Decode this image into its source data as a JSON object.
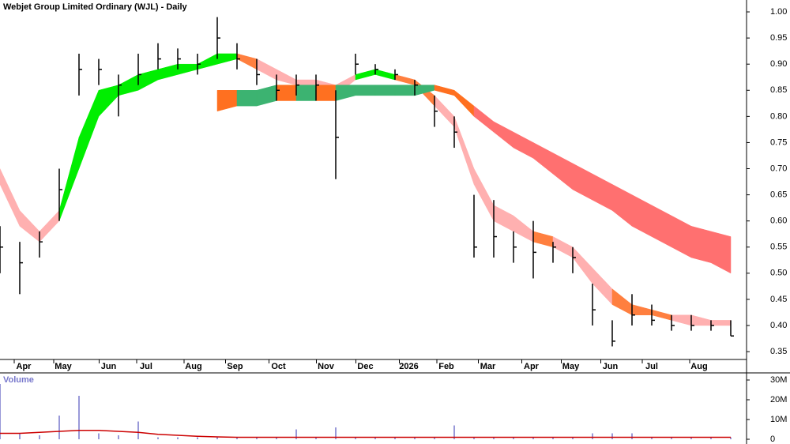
{
  "chart_data": {
    "type": "price-bars",
    "title": "Webjet Group Limited Ordinary (WJL) - Daily",
    "volume_title": "Volume",
    "x": [
      0,
      10,
      20,
      30,
      40,
      50,
      60,
      70,
      80,
      90,
      100,
      110,
      120,
      130,
      140,
      150,
      160,
      170,
      180,
      190,
      200,
      210,
      220,
      230,
      240,
      250,
      260,
      270,
      280,
      290,
      300,
      310,
      320,
      330,
      340,
      350,
      360,
      370
    ],
    "close": [
      0.55,
      0.52,
      0.56,
      0.66,
      0.89,
      0.89,
      0.86,
      0.88,
      0.91,
      0.91,
      0.9,
      0.95,
      0.91,
      0.88,
      0.85,
      0.86,
      0.86,
      0.76,
      0.9,
      0.89,
      0.88,
      0.86,
      0.81,
      0.77,
      0.55,
      0.57,
      0.55,
      0.54,
      0.55,
      0.53,
      0.43,
      0.37,
      0.42,
      0.41,
      0.4,
      0.4,
      0.4,
      0.38
    ],
    "high": [
      0.59,
      0.56,
      0.58,
      0.7,
      0.92,
      0.91,
      0.88,
      0.92,
      0.94,
      0.93,
      0.92,
      0.99,
      0.94,
      0.91,
      0.88,
      0.88,
      0.88,
      0.85,
      0.92,
      0.9,
      0.89,
      0.87,
      0.84,
      0.8,
      0.65,
      0.64,
      0.58,
      0.6,
      0.56,
      0.55,
      0.48,
      0.41,
      0.46,
      0.44,
      0.42,
      0.42,
      0.41,
      0.41
    ],
    "low": [
      0.5,
      0.46,
      0.53,
      0.6,
      0.84,
      0.86,
      0.8,
      0.86,
      0.89,
      0.89,
      0.88,
      0.91,
      0.89,
      0.86,
      0.83,
      0.84,
      0.83,
      0.68,
      0.88,
      0.88,
      0.87,
      0.84,
      0.78,
      0.74,
      0.53,
      0.53,
      0.52,
      0.49,
      0.52,
      0.5,
      0.4,
      0.36,
      0.4,
      0.4,
      0.39,
      0.39,
      0.39,
      0.38
    ],
    "bands": [
      {
        "upper": [
          0.7,
          0.62,
          0.58,
          0.62,
          0.76,
          0.85,
          0.86,
          0.88,
          0.89,
          0.9,
          0.9,
          0.92,
          0.92,
          0.91,
          0.89,
          0.87,
          0.87,
          0.86,
          0.88,
          0.89,
          0.88,
          0.87,
          0.84,
          0.8,
          0.7,
          0.63,
          0.61,
          0.58,
          0.57,
          0.55,
          0.51,
          0.47,
          0.44,
          0.43,
          0.42,
          0.42,
          0.41,
          0.41
        ],
        "lower": [
          0.67,
          0.59,
          0.56,
          0.6,
          0.7,
          0.8,
          0.84,
          0.85,
          0.87,
          0.88,
          0.89,
          0.9,
          0.91,
          0.89,
          0.87,
          0.86,
          0.86,
          0.84,
          0.87,
          0.88,
          0.87,
          0.86,
          0.82,
          0.78,
          0.67,
          0.6,
          0.58,
          0.56,
          0.55,
          0.53,
          0.48,
          0.44,
          0.42,
          0.42,
          0.41,
          0.4,
          0.4,
          0.4
        ],
        "colors": [
          "#ffb0b0",
          "#ffb0b0",
          "#ffb0b0",
          "#00ee00",
          "#00ee00",
          "#00ee00",
          "#00ee00",
          "#00ee00",
          "#00ee00",
          "#00ee00",
          "#00ee00",
          "#00ee00",
          "#ff7f3f",
          "#ffb0b0",
          "#ffb0b0",
          "#ffb0b0",
          "#ffb0b0",
          "#ffb0b0",
          "#00ee00",
          "#00ee00",
          "#ff7f3f",
          "#ff7f3f",
          "#ffb0b0",
          "#ffb0b0",
          "#ffb0b0",
          "#ffb0b0",
          "#ffb0b0",
          "#ff7f3f",
          "#ffb0b0",
          "#ffb0b0",
          "#ffb0b0",
          "#ff7f3f",
          "#ff7f3f",
          "#ff7f3f",
          "#ffb0b0",
          "#ffb0b0",
          "#ffb0b0",
          "#ffb0b0"
        ]
      },
      {
        "upper": [
          null,
          null,
          null,
          null,
          null,
          null,
          null,
          null,
          null,
          null,
          null,
          0.85,
          0.85,
          0.85,
          0.86,
          0.86,
          0.86,
          0.86,
          0.86,
          0.86,
          0.86,
          0.86,
          0.86,
          0.85,
          0.82,
          0.79,
          0.77,
          0.75,
          0.73,
          0.71,
          0.69,
          0.67,
          0.65,
          0.63,
          0.61,
          0.59,
          0.58,
          0.57
        ],
        "lower": [
          null,
          null,
          null,
          null,
          null,
          null,
          null,
          null,
          null,
          null,
          null,
          0.81,
          0.82,
          0.82,
          0.83,
          0.83,
          0.83,
          0.83,
          0.84,
          0.84,
          0.84,
          0.84,
          0.85,
          0.84,
          0.8,
          0.77,
          0.74,
          0.72,
          0.69,
          0.66,
          0.64,
          0.62,
          0.59,
          0.57,
          0.55,
          0.53,
          0.52,
          0.5
        ],
        "colors": [
          null,
          null,
          null,
          null,
          null,
          null,
          null,
          null,
          null,
          null,
          null,
          "#ff7020",
          "#3cb371",
          "#3cb371",
          "#ff7020",
          "#3cb371",
          "#ff7020",
          "#3cb371",
          "#3cb371",
          "#3cb371",
          "#3cb371",
          "#3cb371",
          "#ff7020",
          "#ff7020",
          "#ff7070",
          "#ff7070",
          "#ff7070",
          "#ff7070",
          "#ff7070",
          "#ff7070",
          "#ff7070",
          "#ff7070",
          "#ff7070",
          "#ff7070",
          "#ff7070",
          "#ff7070",
          "#ff7070",
          "#ff7070"
        ]
      }
    ],
    "volume": [
      28000000,
      3000000,
      2000000,
      12000000,
      22000000,
      3000000,
      2000000,
      9000000,
      1000000,
      1000000,
      1000000,
      1000000,
      1000000,
      1000000,
      1000000,
      5000000,
      1000000,
      6000000,
      1000000,
      1000000,
      1000000,
      1000000,
      1000000,
      7000000,
      1000000,
      1000000,
      1000000,
      1000000,
      1000000,
      1000000,
      3000000,
      3000000,
      3000000,
      1000000,
      1000000,
      1000000,
      1000000,
      1000000
    ],
    "volume_avg": [
      3000000,
      3000000,
      3500000,
      4000000,
      4500000,
      4500000,
      4000000,
      3500000,
      2500000,
      2000000,
      1500000,
      1200000,
      1000000,
      1000000,
      1000000,
      1000000,
      1000000,
      1000000,
      1000000,
      1000000,
      1000000,
      1000000,
      1000000,
      1000000,
      1000000,
      1000000,
      1000000,
      1000000,
      1000000,
      1000000,
      1000000,
      1000000,
      1000000,
      1000000,
      1000000,
      1000000,
      1000000,
      1000000
    ],
    "bar_color": "#000000",
    "volume_color": "#7777cc",
    "volume_avg_color": "#cc0000",
    "xlim": [
      0,
      378
    ],
    "xticks": [
      {
        "value": 12,
        "label": "Apr"
      },
      {
        "value": 32,
        "label": "May"
      },
      {
        "value": 55,
        "label": "Jun"
      },
      {
        "value": 74,
        "label": "Jul"
      },
      {
        "value": 98,
        "label": "Aug"
      },
      {
        "value": 119,
        "label": "Sep"
      },
      {
        "value": 141,
        "label": "Oct"
      },
      {
        "value": 165,
        "label": "Nov"
      },
      {
        "value": 185,
        "label": "Dec"
      },
      {
        "value": 207,
        "label": "2026"
      },
      {
        "value": 226,
        "label": "Feb"
      },
      {
        "value": 247,
        "label": "Mar"
      },
      {
        "value": 269,
        "label": "Apr"
      },
      {
        "value": 289,
        "label": "May"
      },
      {
        "value": 309,
        "label": "Jun"
      },
      {
        "value": 330,
        "label": "Jul"
      },
      {
        "value": 354,
        "label": "Aug"
      }
    ],
    "ylim": [
      0.335,
      1.02
    ],
    "yticks": [
      0.35,
      {
        "value": 0.4,
        "label": "0.40"
      },
      0.45,
      {
        "value": 0.5,
        "label": "0.50"
      },
      0.55,
      {
        "value": 0.6,
        "label": "0.60"
      },
      0.65,
      {
        "value": 0.7,
        "label": "0.70"
      },
      0.75,
      {
        "value": 0.8,
        "label": "0.80"
      },
      0.85,
      {
        "value": 0.9,
        "label": "0.90"
      },
      0.95,
      {
        "value": 1,
        "label": "1.00"
      }
    ],
    "vlim": [
      0,
      32000000
    ],
    "vticks": [
      0,
      {
        "value": 10000000,
        "label": "10M"
      },
      {
        "value": 20000000,
        "label": "20M"
      },
      {
        "value": 30000000,
        "label": "30M"
      }
    ]
  }
}
